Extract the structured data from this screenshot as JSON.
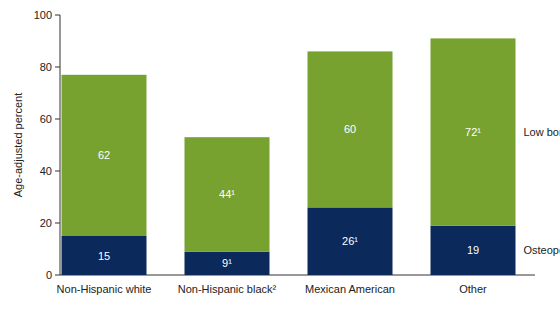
{
  "chart_data": {
    "type": "bar",
    "stacked": true,
    "data_labels": true,
    "grid": false,
    "y_label": "Age-adjusted percent",
    "categories": [
      "Non-Hispanic white",
      "Non-Hispanic black²",
      "Mexican American",
      "Other"
    ],
    "series": [
      {
        "name": "Osteoporosis",
        "color": "#0b2a5b",
        "values": [
          15,
          9,
          26,
          19
        ],
        "value_labels": [
          "15",
          "9¹",
          "26¹",
          "19"
        ]
      },
      {
        "name": "Low bone mass",
        "color": "#77a22f",
        "values": [
          62,
          44,
          60,
          72
        ],
        "value_labels": [
          "62",
          "44¹",
          "60",
          "72¹"
        ]
      }
    ],
    "ylim": [
      0,
      100
    ],
    "yticks": [
      0,
      20,
      40,
      60,
      80,
      100
    ]
  }
}
